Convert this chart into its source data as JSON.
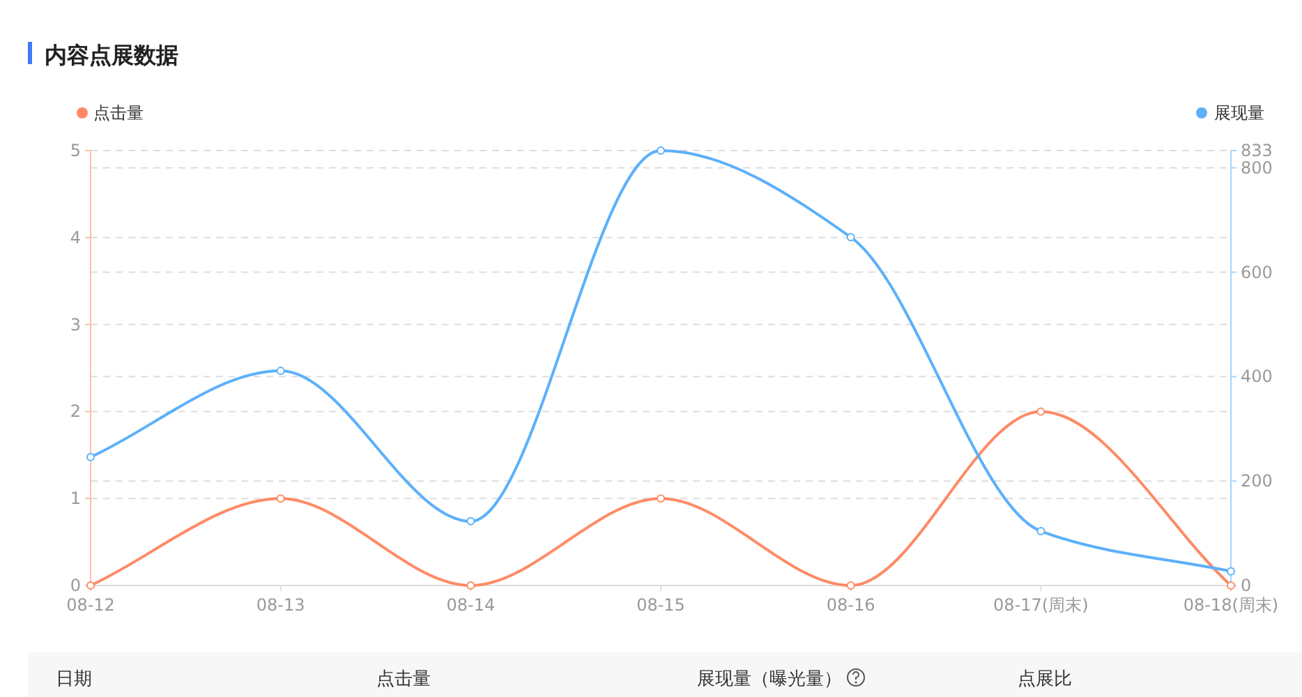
{
  "chart_data": {
    "type": "line",
    "title": "内容点展数据",
    "categories": [
      "08-12",
      "08-13",
      "08-14",
      "08-15",
      "08-16",
      "08-17(周末)",
      "08-18(周末)"
    ],
    "series": [
      {
        "name": "点击量",
        "color": "#ff8a65",
        "values": [
          0,
          1,
          0,
          1,
          0,
          2,
          0
        ]
      },
      {
        "name": "展现量",
        "color": "#5cb0fa",
        "axis": "y2",
        "values": [
          246,
          411,
          123,
          833,
          667,
          104,
          27
        ]
      }
    ],
    "ylim": [
      0,
      5
    ],
    "yticks": [
      0,
      1,
      2,
      3,
      4,
      5
    ],
    "y2lim": [
      0,
      833
    ],
    "y2ticks": [
      0,
      200,
      400,
      600,
      800,
      833
    ],
    "grid": true,
    "legend": "top",
    "marker": "circle",
    "annotations": [
      "日期",
      "点击量",
      "展现量（曝光量）",
      "点展比"
    ]
  }
}
